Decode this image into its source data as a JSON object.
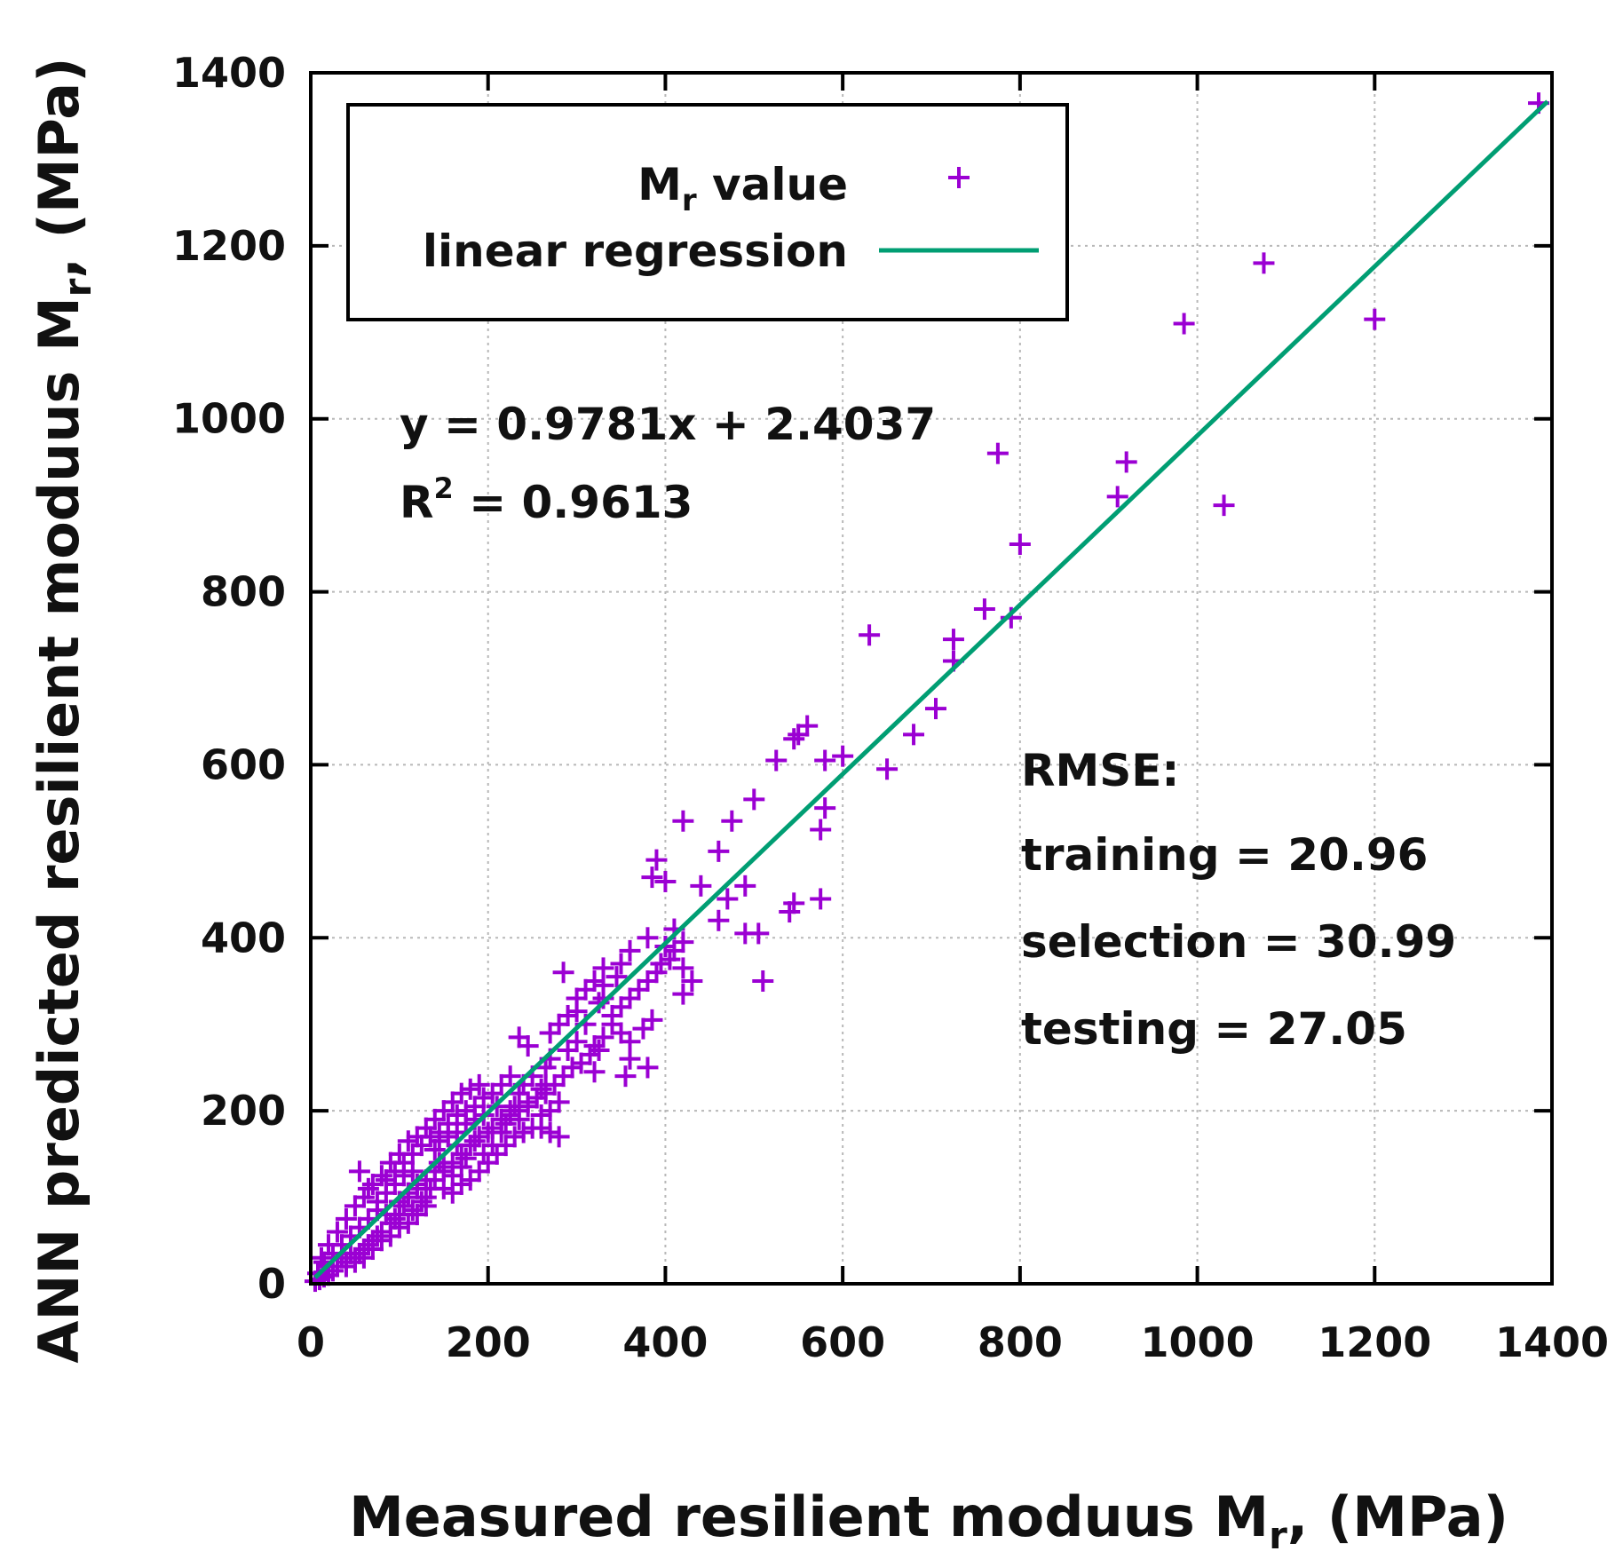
{
  "chart_data": {
    "type": "scatter",
    "x_axis": {
      "label": "Measured resilient moduus M",
      "label_sub": "r",
      "label_tail": ", (MPa)",
      "range": [
        0,
        1400
      ],
      "ticks": [
        0,
        200,
        400,
        600,
        800,
        1000,
        1200,
        1400
      ]
    },
    "y_axis": {
      "label": "ANN predicted resilient moduus M",
      "label_sub": "r",
      "label_tail": ", (MPa)",
      "range": [
        0,
        1400
      ],
      "ticks": [
        0,
        200,
        400,
        600,
        800,
        1000,
        1200,
        1400
      ]
    },
    "grid": true,
    "legend": {
      "position": "top-left",
      "entries": [
        {
          "name": "M",
          "sub": "r",
          "tail": " value",
          "kind": "marker"
        },
        {
          "name": "linear regression",
          "kind": "line"
        }
      ]
    },
    "colors": {
      "points": "#9b00d3",
      "line": "#009e73",
      "axis": "#000000",
      "grid": "#b8b8b8"
    },
    "regression": {
      "slope": 0.9781,
      "intercept": 2.4037,
      "equation": "y = 0.9781x + 2.4037",
      "r2_label": "R",
      "r2_sup": "2",
      "r2_value": " = 0.9613"
    },
    "rmse": {
      "title": "RMSE:",
      "lines": [
        "training = 20.96",
        "selection = 30.99",
        "testing = 27.05"
      ]
    },
    "series": [
      {
        "name": "Mr value",
        "points": [
          [
            1385,
            1365
          ],
          [
            1075,
            1180
          ],
          [
            1200,
            1115
          ],
          [
            985,
            1110
          ],
          [
            775,
            960
          ],
          [
            920,
            950
          ],
          [
            910,
            910
          ],
          [
            1030,
            900
          ],
          [
            800,
            855
          ],
          [
            760,
            780
          ],
          [
            790,
            770
          ],
          [
            630,
            750
          ],
          [
            725,
            745
          ],
          [
            725,
            720
          ],
          [
            705,
            665
          ],
          [
            680,
            635
          ],
          [
            560,
            645
          ],
          [
            550,
            635
          ],
          [
            545,
            630
          ],
          [
            600,
            610
          ],
          [
            580,
            605
          ],
          [
            525,
            605
          ],
          [
            650,
            595
          ],
          [
            500,
            560
          ],
          [
            580,
            550
          ],
          [
            575,
            525
          ],
          [
            420,
            535
          ],
          [
            475,
            535
          ],
          [
            460,
            500
          ],
          [
            390,
            490
          ],
          [
            385,
            470
          ],
          [
            400,
            465
          ],
          [
            440,
            460
          ],
          [
            490,
            460
          ],
          [
            470,
            445
          ],
          [
            575,
            445
          ],
          [
            545,
            440
          ],
          [
            540,
            430
          ],
          [
            460,
            420
          ],
          [
            490,
            405
          ],
          [
            505,
            405
          ],
          [
            410,
            410
          ],
          [
            420,
            395
          ],
          [
            400,
            390
          ],
          [
            380,
            400
          ],
          [
            360,
            385
          ],
          [
            350,
            370
          ],
          [
            420,
            365
          ],
          [
            430,
            350
          ],
          [
            420,
            335
          ],
          [
            510,
            350
          ],
          [
            330,
            365
          ],
          [
            345,
            355
          ],
          [
            330,
            330
          ],
          [
            325,
            325
          ],
          [
            300,
            315
          ],
          [
            285,
            360
          ],
          [
            310,
            300
          ],
          [
            300,
            280
          ],
          [
            290,
            270
          ],
          [
            340,
            300
          ],
          [
            350,
            290
          ],
          [
            360,
            280
          ],
          [
            375,
            295
          ],
          [
            385,
            305
          ],
          [
            380,
            250
          ],
          [
            355,
            240
          ],
          [
            360,
            260
          ],
          [
            325,
            270
          ],
          [
            320,
            245
          ],
          [
            270,
            260
          ],
          [
            265,
            250
          ],
          [
            250,
            240
          ],
          [
            265,
            230
          ],
          [
            260,
            225
          ],
          [
            240,
            230
          ],
          [
            235,
            220
          ],
          [
            245,
            210
          ],
          [
            230,
            205
          ],
          [
            225,
            200
          ],
          [
            210,
            205
          ],
          [
            235,
            285
          ],
          [
            245,
            275
          ],
          [
            235,
            190
          ],
          [
            260,
            180
          ],
          [
            280,
            170
          ],
          [
            270,
            175
          ],
          [
            220,
            185
          ],
          [
            215,
            175
          ],
          [
            200,
            175
          ],
          [
            205,
            160
          ],
          [
            195,
            150
          ],
          [
            185,
            165
          ],
          [
            175,
            145
          ],
          [
            170,
            135
          ],
          [
            165,
            160
          ],
          [
            160,
            125
          ],
          [
            150,
            130
          ],
          [
            145,
            140
          ],
          [
            140,
            120
          ],
          [
            135,
            110
          ],
          [
            130,
            100
          ],
          [
            125,
            95
          ],
          [
            120,
            110
          ],
          [
            115,
            85
          ],
          [
            110,
            100
          ],
          [
            105,
            90
          ],
          [
            100,
            80
          ],
          [
            95,
            75
          ],
          [
            90,
            70
          ],
          [
            85,
            80
          ],
          [
            80,
            60
          ],
          [
            75,
            55
          ],
          [
            70,
            50
          ],
          [
            65,
            45
          ],
          [
            60,
            40
          ],
          [
            55,
            35
          ],
          [
            50,
            30
          ],
          [
            45,
            35
          ],
          [
            40,
            25
          ],
          [
            35,
            30
          ],
          [
            30,
            20
          ],
          [
            25,
            15
          ],
          [
            20,
            10
          ],
          [
            15,
            8
          ],
          [
            10,
            5
          ],
          [
            8,
            12
          ],
          [
            5,
            3
          ],
          [
            12,
            30
          ],
          [
            20,
            45
          ],
          [
            30,
            60
          ],
          [
            40,
            75
          ],
          [
            50,
            90
          ],
          [
            60,
            100
          ],
          [
            70,
            115
          ],
          [
            80,
            125
          ],
          [
            90,
            140
          ],
          [
            100,
            150
          ],
          [
            110,
            165
          ],
          [
            120,
            170
          ],
          [
            130,
            180
          ],
          [
            140,
            190
          ],
          [
            150,
            200
          ],
          [
            160,
            210
          ],
          [
            170,
            220
          ],
          [
            180,
            225
          ],
          [
            190,
            230
          ],
          [
            55,
            130
          ],
          [
            65,
            110
          ],
          [
            75,
            95
          ],
          [
            85,
            120
          ],
          [
            95,
            130
          ],
          [
            105,
            140
          ],
          [
            115,
            150
          ],
          [
            125,
            160
          ],
          [
            135,
            170
          ],
          [
            145,
            175
          ],
          [
            155,
            185
          ],
          [
            165,
            195
          ],
          [
            175,
            200
          ],
          [
            185,
            205
          ],
          [
            195,
            215
          ],
          [
            205,
            220
          ],
          [
            215,
            230
          ],
          [
            225,
            240
          ],
          [
            150,
            110
          ],
          [
            160,
            105
          ],
          [
            170,
            115
          ],
          [
            180,
            120
          ],
          [
            190,
            130
          ],
          [
            200,
            140
          ],
          [
            210,
            150
          ],
          [
            220,
            160
          ],
          [
            230,
            170
          ],
          [
            240,
            175
          ],
          [
            250,
            180
          ],
          [
            260,
            195
          ],
          [
            270,
            200
          ],
          [
            280,
            210
          ],
          [
            130,
            90
          ],
          [
            120,
            80
          ],
          [
            110,
            70
          ],
          [
            100,
            65
          ],
          [
            90,
            55
          ],
          [
            80,
            50
          ],
          [
            70,
            40
          ],
          [
            60,
            30
          ],
          [
            50,
            25
          ],
          [
            40,
            20
          ],
          [
            140,
            155
          ],
          [
            145,
            165
          ],
          [
            155,
            170
          ],
          [
            165,
            175
          ],
          [
            175,
            185
          ],
          [
            185,
            190
          ],
          [
            195,
            195
          ],
          [
            115,
            130
          ],
          [
            105,
            125
          ],
          [
            95,
            115
          ],
          [
            85,
            105
          ],
          [
            75,
            85
          ],
          [
            65,
            75
          ],
          [
            55,
            65
          ],
          [
            45,
            55
          ],
          [
            35,
            45
          ],
          [
            25,
            35
          ],
          [
            15,
            25
          ],
          [
            205,
            180
          ],
          [
            215,
            190
          ],
          [
            225,
            195
          ],
          [
            235,
            200
          ],
          [
            245,
            205
          ],
          [
            255,
            215
          ],
          [
            265,
            220
          ],
          [
            275,
            230
          ],
          [
            285,
            240
          ],
          [
            295,
            250
          ],
          [
            305,
            255
          ],
          [
            315,
            265
          ],
          [
            320,
            275
          ],
          [
            330,
            285
          ],
          [
            340,
            310
          ],
          [
            350,
            320
          ],
          [
            360,
            330
          ],
          [
            370,
            340
          ],
          [
            380,
            350
          ],
          [
            390,
            360
          ],
          [
            395,
            370
          ],
          [
            405,
            375
          ],
          [
            410,
            385
          ],
          [
            300,
            330
          ],
          [
            310,
            340
          ],
          [
            320,
            350
          ],
          [
            330,
            345
          ],
          [
            290,
            310
          ],
          [
            280,
            300
          ],
          [
            270,
            290
          ],
          [
            190,
            170
          ],
          [
            180,
            160
          ],
          [
            170,
            150
          ],
          [
            160,
            140
          ],
          [
            150,
            135
          ],
          [
            140,
            130
          ],
          [
            130,
            120
          ],
          [
            120,
            115
          ],
          [
            110,
            105
          ],
          [
            100,
            95
          ]
        ]
      }
    ]
  }
}
